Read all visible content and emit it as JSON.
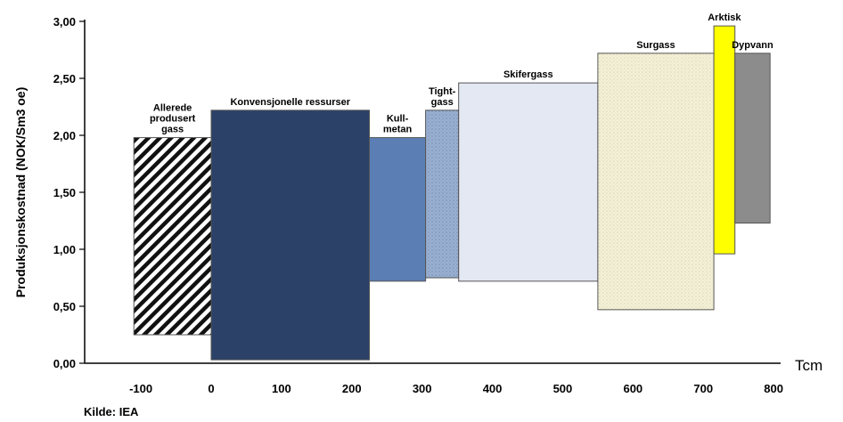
{
  "chart_data": {
    "type": "bar",
    "subtype": "variable-width cost-supply bars",
    "ylabel": "Produksjonskostnad (NOK/Sm3 oe)",
    "xunit": "Tcm",
    "source": "Kilde: IEA",
    "ylim": [
      0,
      3
    ],
    "xlim": [
      -180,
      810
    ],
    "yticks": [
      "0,00",
      "0,50",
      "1,00",
      "1,50",
      "2,00",
      "2,50",
      "3,00"
    ],
    "xticks": [
      {
        "value": -100,
        "label": "-100"
      },
      {
        "value": 0,
        "label": "0"
      },
      {
        "value": 100,
        "label": "100"
      },
      {
        "value": 200,
        "label": "200"
      },
      {
        "value": 300,
        "label": "300"
      },
      {
        "value": 400,
        "label": "400"
      },
      {
        "value": 500,
        "label": "500"
      },
      {
        "value": 600,
        "label": "600"
      },
      {
        "value": 700,
        "label": "700"
      },
      {
        "value": 800,
        "label": "800"
      }
    ],
    "bars": [
      {
        "name": "Allerede produsert gass",
        "label_lines": [
          "Allerede",
          "produsert",
          "gass"
        ],
        "x0": -110,
        "x1": 0,
        "ylow": 0.25,
        "yhigh": 1.98,
        "color": "#ffffff",
        "pattern": "hatch"
      },
      {
        "name": "Konvensjonelle ressurser",
        "label_lines": [
          "Konvensjonelle ressurser"
        ],
        "x0": 0,
        "x1": 225,
        "ylow": 0.03,
        "yhigh": 2.22,
        "color": "#2b4168",
        "pattern": "none"
      },
      {
        "name": "Kull-metan",
        "label_lines": [
          "Kull-",
          "metan"
        ],
        "x0": 225,
        "x1": 305,
        "ylow": 0.72,
        "yhigh": 1.98,
        "color": "#5b7eb4",
        "pattern": "none"
      },
      {
        "name": "Tight-gass",
        "label_lines": [
          "Tight-",
          "gass"
        ],
        "x0": 305,
        "x1": 352,
        "ylow": 0.75,
        "yhigh": 2.22,
        "color": "#9ab0d2",
        "pattern": "dots"
      },
      {
        "name": "Skifergass",
        "label_lines": [
          "Skifergass"
        ],
        "x0": 352,
        "x1": 550,
        "ylow": 0.72,
        "yhigh": 2.46,
        "color": "#e3e8f3",
        "pattern": "none"
      },
      {
        "name": "Surgass",
        "label_lines": [
          "Surgass"
        ],
        "x0": 550,
        "x1": 715,
        "ylow": 0.47,
        "yhigh": 2.72,
        "color": "#f4f1d8",
        "pattern": "dots"
      },
      {
        "name": "Arktisk",
        "label_lines": [
          "Arktisk"
        ],
        "x0": 715,
        "x1": 745,
        "ylow": 0.96,
        "yhigh": 2.96,
        "color": "#ffff00",
        "pattern": "none"
      },
      {
        "name": "Dypvann",
        "label_lines": [
          "Dypvann"
        ],
        "x0": 745,
        "x1": 795,
        "ylow": 1.23,
        "yhigh": 2.72,
        "color": "#8c8c8c",
        "pattern": "none"
      }
    ]
  }
}
